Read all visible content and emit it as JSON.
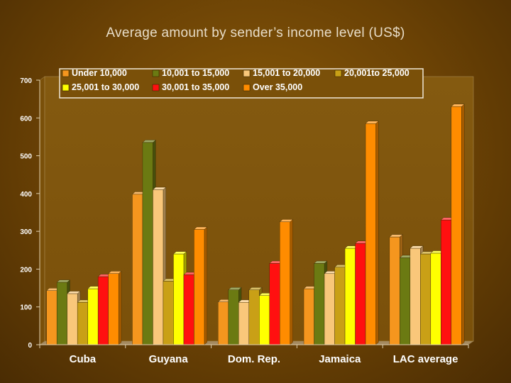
{
  "chart_data": {
    "type": "bar",
    "title": "Average amount by sender’s income level (US$)",
    "xlabel": "",
    "ylabel": "",
    "ylim": [
      0,
      700
    ],
    "yticks": [
      0,
      100,
      200,
      300,
      400,
      500,
      600,
      700
    ],
    "grid": false,
    "legend_position": "top",
    "categories": [
      "Cuba",
      "Guyana",
      "Dom. Rep.",
      "Jamaica",
      "LAC average"
    ],
    "series": [
      {
        "name": "Under 10,000",
        "color": "#f5961e",
        "values": [
          143,
          398,
          113,
          148,
          285
        ]
      },
      {
        "name": "10,001 to 15,000",
        "color": "#6b7a12",
        "values": [
          165,
          535,
          145,
          215,
          230
        ]
      },
      {
        "name": "15,001 to 20,000",
        "color": "#f9c77a",
        "values": [
          135,
          410,
          112,
          188,
          255
        ]
      },
      {
        "name": "20,001to 25,000",
        "color": "#c9a016",
        "values": [
          112,
          168,
          145,
          205,
          240
        ]
      },
      {
        "name": "25,001 to 30,000",
        "color": "#ffff00",
        "values": [
          148,
          240,
          130,
          255,
          242
        ]
      },
      {
        "name": "30,001 to 35,000",
        "color": "#ff1010",
        "values": [
          180,
          185,
          215,
          268,
          330
        ]
      },
      {
        "name": "Over 35,000",
        "color": "#ff8c00",
        "values": [
          188,
          305,
          325,
          585,
          630
        ]
      }
    ]
  }
}
